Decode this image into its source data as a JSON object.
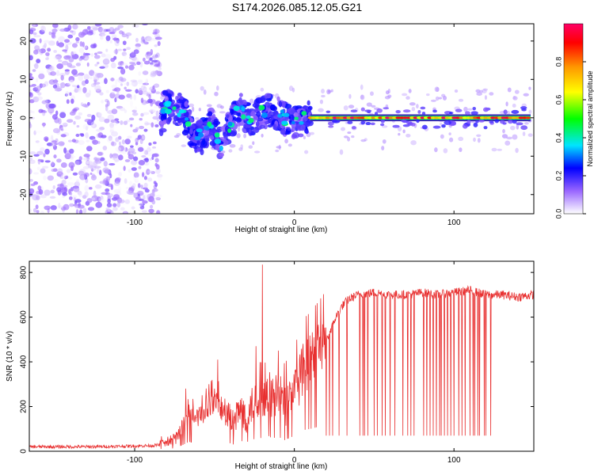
{
  "figure_title": "S174.2026.085.12.05.G21",
  "chart_data": [
    {
      "type": "heatmap",
      "panel": "spectrogram",
      "xlabel": "Height of straight line (km)",
      "ylabel": "Frequency (Hz)",
      "xlim": [
        -166,
        150
      ],
      "ylim": [
        -25,
        24.5
      ],
      "xticks": [
        -100,
        0,
        100
      ],
      "yticks": [
        -20,
        -10,
        0,
        10,
        20
      ],
      "colorbar": {
        "label": "Normalized spectral amplitude",
        "range": [
          0,
          1
        ],
        "ticks": [
          0.0,
          0.2,
          0.4,
          0.6,
          0.8
        ],
        "tick_labels": [
          "0.0",
          "0.2",
          "0.4",
          "0.6",
          "0.8"
        ],
        "colormap": [
          "#ffffff",
          "#9966ff",
          "#0000ff",
          "#00e5ff",
          "#00ff00",
          "#ffff00",
          "#ff9900",
          "#ff0000",
          "#ff0066"
        ]
      },
      "regions": [
        {
          "name": "noise",
          "x_range": [
            -166,
            -84
          ],
          "freq_range": [
            -25,
            24.5
          ],
          "amplitude_range": [
            0.0,
            0.15
          ]
        },
        {
          "name": "transition",
          "x_range": [
            -84,
            10
          ],
          "freq_range": [
            -10,
            8
          ],
          "amplitude_range": [
            0.1,
            0.45
          ]
        },
        {
          "name": "carrier",
          "x_range": [
            10,
            148
          ],
          "freq_range": [
            -0.6,
            0.6
          ],
          "amplitude_range": [
            0.7,
            1.0
          ]
        }
      ],
      "ridge": [
        {
          "x": -82,
          "freq": 3
        },
        {
          "x": -76,
          "freq": 2.5
        },
        {
          "x": -70,
          "freq": 2
        },
        {
          "x": -64,
          "freq": -4
        },
        {
          "x": -58,
          "freq": -5
        },
        {
          "x": -52,
          "freq": -2
        },
        {
          "x": -46,
          "freq": -7
        },
        {
          "x": -40,
          "freq": -2
        },
        {
          "x": -34,
          "freq": 3
        },
        {
          "x": -28,
          "freq": -1
        },
        {
          "x": -22,
          "freq": 1
        },
        {
          "x": -16,
          "freq": 2
        },
        {
          "x": -10,
          "freq": 1
        },
        {
          "x": -4,
          "freq": -1
        },
        {
          "x": 2,
          "freq": -1
        },
        {
          "x": 8,
          "freq": 0
        },
        {
          "x": 148,
          "freq": 0
        }
      ]
    },
    {
      "type": "line",
      "panel": "snr",
      "xlabel": "Height of straight line (km)",
      "ylabel": "SNR (10 * v/v)",
      "xlim": [
        -166,
        150
      ],
      "ylim": [
        0,
        850
      ],
      "xticks": [
        -100,
        0,
        100
      ],
      "yticks": [
        0,
        200,
        400,
        600,
        800
      ],
      "series": [
        {
          "name": "SNR",
          "color": "#e83030",
          "x": [
            -166,
            -150,
            -130,
            -110,
            -90,
            -82,
            -78,
            -74,
            -70,
            -66,
            -62,
            -58,
            -54,
            -50,
            -46,
            -42,
            -38,
            -34,
            -30,
            -26,
            -22,
            -18,
            -16,
            -14,
            -10,
            -6,
            -2,
            2,
            6,
            10,
            14,
            18,
            22,
            26,
            30,
            34,
            40,
            50,
            60,
            70,
            80,
            90,
            100,
            110,
            120,
            130,
            140,
            150
          ],
          "values": [
            20,
            20,
            20,
            22,
            25,
            30,
            45,
            60,
            110,
            170,
            150,
            160,
            200,
            230,
            190,
            160,
            120,
            190,
            160,
            210,
            240,
            230,
            270,
            230,
            260,
            200,
            250,
            300,
            380,
            400,
            430,
            460,
            530,
            600,
            650,
            680,
            700,
            710,
            700,
            700,
            710,
            700,
            710,
            720,
            700,
            700,
            690,
            700
          ]
        }
      ],
      "dropouts_x": [
        20,
        22,
        24,
        28,
        33,
        41,
        43,
        44,
        46,
        50,
        52,
        55,
        57,
        60,
        63,
        68,
        71,
        73,
        75,
        81,
        83,
        85,
        87,
        89,
        91,
        92,
        94,
        96,
        98,
        100,
        103,
        105,
        107,
        110,
        112,
        113,
        115,
        116,
        119,
        120,
        123
      ],
      "dropout_value": 70,
      "spikes": [
        {
          "x": -68,
          "y": 280
        },
        {
          "x": -48,
          "y": 410
        },
        {
          "x": -20,
          "y": 835
        },
        {
          "x": -24,
          "y": 470
        },
        {
          "x": -10,
          "y": 450
        },
        {
          "x": 6,
          "y": 420
        },
        {
          "x": 14,
          "y": 460
        }
      ]
    }
  ]
}
